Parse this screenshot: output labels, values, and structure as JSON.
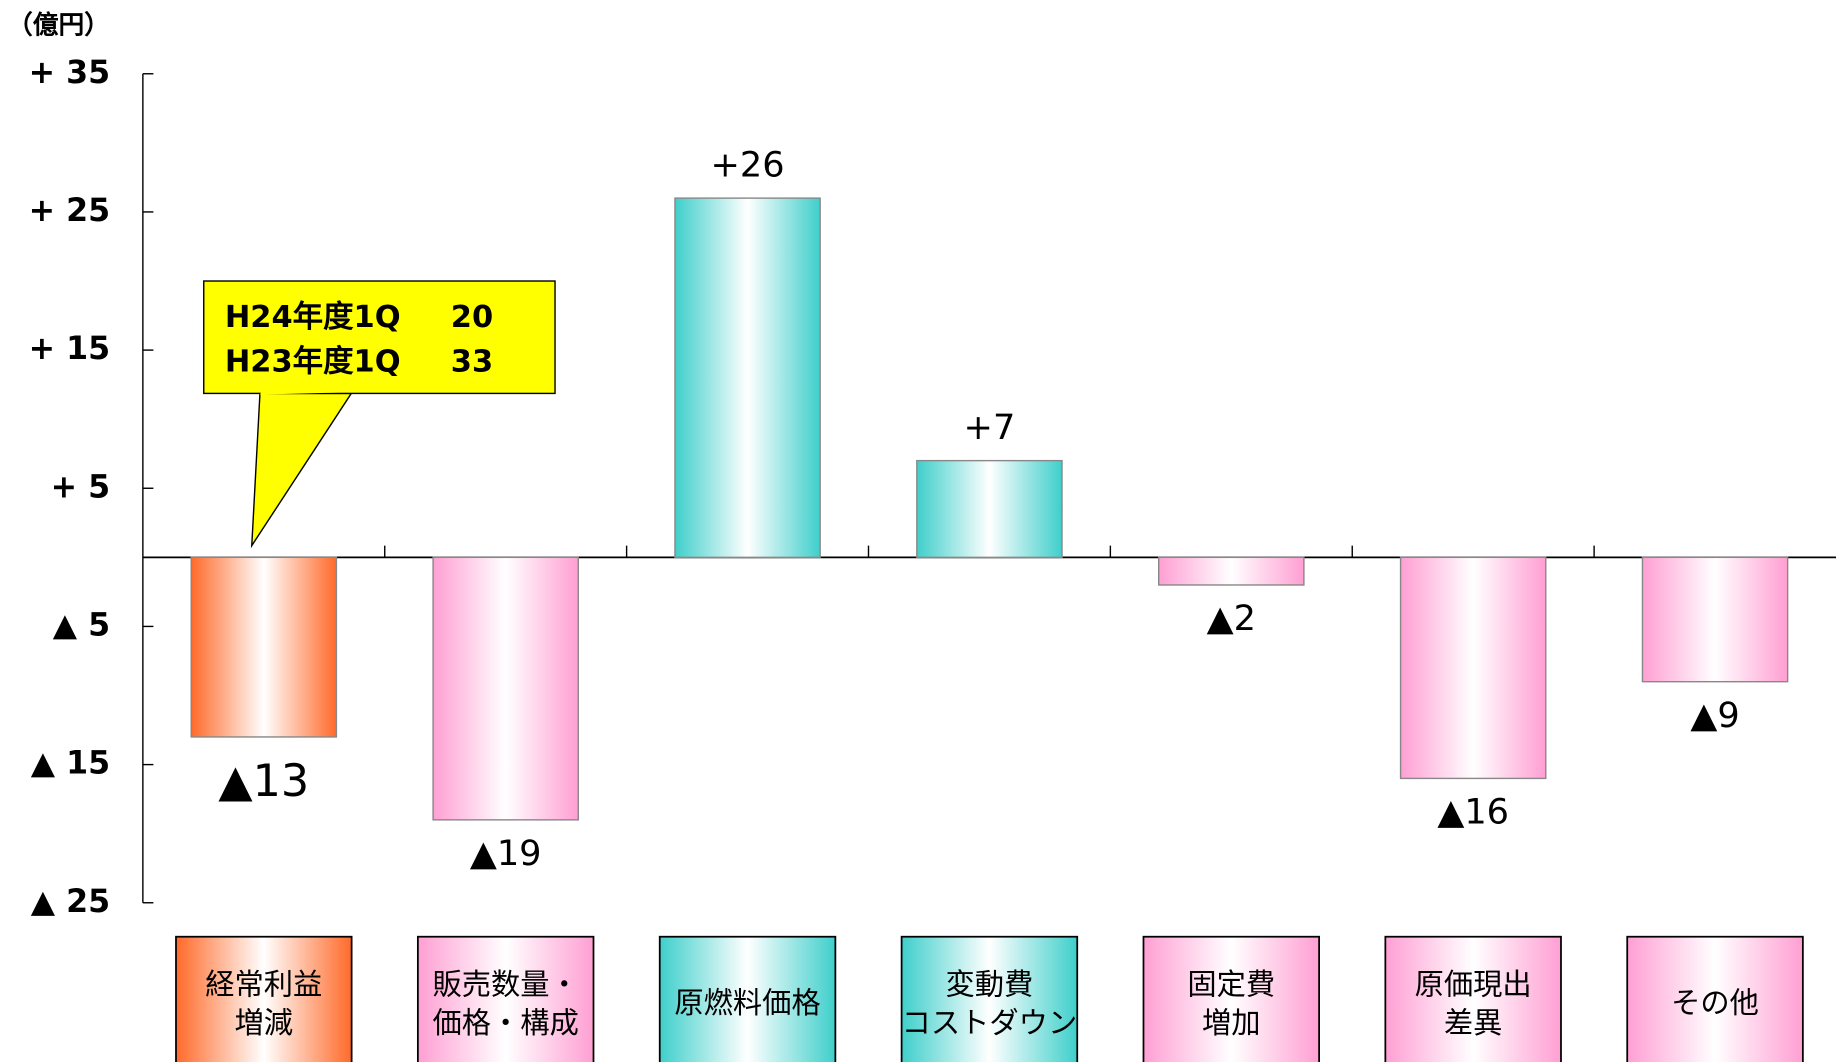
{
  "chart_data": {
    "type": "bar",
    "y_axis_label": "（億円）",
    "categories": [
      [
        "経常利益",
        "増減"
      ],
      [
        "販売数量・",
        "価格・構成"
      ],
      [
        "原燃料価格"
      ],
      [
        "変動費",
        "コストダウン"
      ],
      [
        "固定費",
        "増加"
      ],
      [
        "原価現出",
        "差異"
      ],
      [
        "その他"
      ]
    ],
    "values": [
      -13,
      -19,
      26,
      7,
      -2,
      -16,
      -9
    ],
    "value_labels": [
      "▲13",
      "▲19",
      "+26",
      "+7",
      "▲2",
      "▲16",
      "▲9"
    ],
    "colors": [
      "#ff6a2a",
      "#ff9fd3",
      "#3fcfcb",
      "#3fcfcb",
      "#ff9fd3",
      "#ff9fd3",
      "#ff9fd3"
    ],
    "ylim": [
      -25,
      35
    ],
    "yticks": [
      {
        "value": 35,
        "label": "+ 35"
      },
      {
        "value": 25,
        "label": "+ 25"
      },
      {
        "value": 15,
        "label": "+ 15"
      },
      {
        "value": 5,
        "label": "+ 5"
      },
      {
        "value": -5,
        "label": "▲ 5"
      },
      {
        "value": -15,
        "label": "▲ 15"
      },
      {
        "value": -25,
        "label": "▲ 25"
      }
    ],
    "annotation": [
      {
        "label": "H24年度1Q",
        "value": 20
      },
      {
        "label": "H23年度1Q",
        "value": 33
      }
    ]
  }
}
